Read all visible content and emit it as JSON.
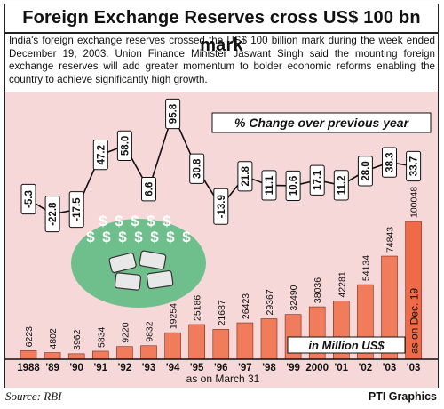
{
  "header": {
    "title": "Foreign Exchange Reserves cross US$ 100 bn mark",
    "description": "India's foreign exchange reserves crossed the US$ 100 billion mark during the week ended December 19, 2003. Union Finance Minister Jaswant Singh said the mounting foreign exchange reserves will add greater momentum to bolder economic reforms enabling the country to achieve significantly high growth."
  },
  "footer": {
    "source": "Source: RBI",
    "credit": "PTI Graphics"
  },
  "colors": {
    "background": "#f6d8d8",
    "bar": "#f07c5c",
    "bar_highlight": "#ef6a48",
    "line": "#111111",
    "illustration": "#6fbf8c"
  },
  "chart_data": [
    {
      "type": "bar",
      "categories": [
        "1988",
        "'89",
        "'90",
        "'91",
        "'92",
        "'93",
        "'94",
        "'95",
        "'96",
        "'97",
        "'98",
        "'99",
        "2000",
        "'01",
        "'02",
        "'03",
        "'03"
      ],
      "values": [
        6223,
        4802,
        3962,
        5834,
        9220,
        9832,
        19254,
        25186,
        21687,
        26423,
        29367,
        32490,
        38036,
        42281,
        54134,
        74843,
        100048
      ],
      "data_labels": [
        "6223",
        "4802",
        "3962",
        "5834",
        "9220",
        "9832",
        "19254",
        "25186",
        "21687",
        "26423",
        "29367",
        "32490",
        "38036",
        "42281",
        "54134",
        "74843",
        "100048"
      ],
      "unit_label": "in Million US$",
      "x_note": "as on March 31",
      "last_bar_note": "as on Dec. 19"
    },
    {
      "type": "line",
      "x": [
        "1988",
        "'89",
        "'90",
        "'91",
        "'92",
        "'93",
        "'94",
        "'95",
        "'96",
        "'97",
        "'98",
        "'99",
        "2000",
        "'01",
        "'02",
        "'03",
        "'03"
      ],
      "values": [
        -5.3,
        -22.8,
        -17.5,
        47.2,
        58.0,
        6.6,
        95.8,
        30.8,
        -13.9,
        21.8,
        11.1,
        10.6,
        17.1,
        11.2,
        28.0,
        38.3,
        33.7
      ],
      "data_labels": [
        "-5.3",
        "-22.8",
        "-17.5",
        "47.2",
        "58.0",
        "6.6",
        "95.8",
        "30.8",
        "-13.9",
        "21.8",
        "11.1",
        "10.6",
        "17.1",
        "11.2",
        "28.0",
        "38.3",
        "33.7"
      ],
      "series_label": "% Change over previous year"
    }
  ]
}
